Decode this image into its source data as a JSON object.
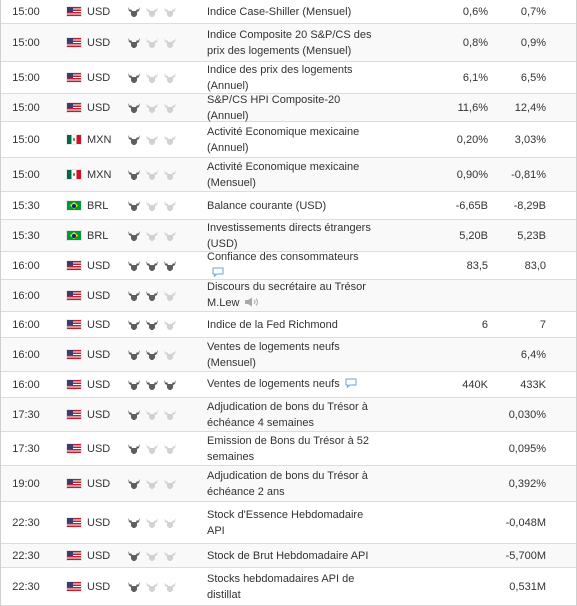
{
  "colors": {
    "bull_on": "#5e5e5e",
    "bull_off": "#d2d2d2",
    "us_red": "#b22234",
    "us_blue": "#3c3b6e",
    "mx_green": "#006847",
    "mx_red": "#ce1126",
    "br_green": "#009c3b",
    "br_yellow": "#ffdf00",
    "comment_icon": "#6ba6d9"
  },
  "rows": [
    {
      "time": "15:00",
      "flag": "us",
      "currency": "USD",
      "importance": 1,
      "event": "Indice Case-Shiller (Mensuel)",
      "icon": "",
      "actual": "0,6%",
      "forecast": "0,7%"
    },
    {
      "time": "15:00",
      "flag": "us",
      "currency": "USD",
      "importance": 1,
      "event": "Indice Composite 20 S&P/CS des prix des logements (Mensuel)",
      "icon": "",
      "actual": "0,8%",
      "forecast": "0,9%"
    },
    {
      "time": "15:00",
      "flag": "us",
      "currency": "USD",
      "importance": 1,
      "event": "Indice des prix des logements (Annuel)",
      "icon": "",
      "actual": "6,1%",
      "forecast": "6,5%"
    },
    {
      "time": "15:00",
      "flag": "us",
      "currency": "USD",
      "importance": 1,
      "event": "S&P/CS HPI Composite-20 (Annuel)",
      "icon": "",
      "actual": "11,6%",
      "forecast": "12,4%"
    },
    {
      "time": "15:00",
      "flag": "mx",
      "currency": "MXN",
      "importance": 1,
      "event": "Activité Economique mexicaine (Annuel)",
      "icon": "",
      "actual": "0,20%",
      "forecast": "3,03%"
    },
    {
      "time": "15:00",
      "flag": "mx",
      "currency": "MXN",
      "importance": 1,
      "event": "Activité Economique mexicaine (Mensuel)",
      "icon": "",
      "actual": "0,90%",
      "forecast": "-0,81%"
    },
    {
      "time": "15:30",
      "flag": "br",
      "currency": "BRL",
      "importance": 1,
      "event": "Balance courante (USD)",
      "icon": "",
      "actual": "-6,65B",
      "forecast": "-8,29B"
    },
    {
      "time": "15:30",
      "flag": "br",
      "currency": "BRL",
      "importance": 1,
      "event": "Investissements directs étrangers (USD)",
      "icon": "",
      "actual": "5,20B",
      "forecast": "5,23B"
    },
    {
      "time": "16:00",
      "flag": "us",
      "currency": "USD",
      "importance": 3,
      "event": "Confiance des consommateurs",
      "icon": "comment",
      "actual": "83,5",
      "forecast": "83,0"
    },
    {
      "time": "16:00",
      "flag": "us",
      "currency": "USD",
      "importance": 2,
      "event": "Discours du secrétaire au Trésor M.Lew",
      "icon": "speaker",
      "actual": "",
      "forecast": ""
    },
    {
      "time": "16:00",
      "flag": "us",
      "currency": "USD",
      "importance": 2,
      "event": "Indice de la Fed Richmond",
      "icon": "",
      "actual": "6",
      "forecast": "7"
    },
    {
      "time": "16:00",
      "flag": "us",
      "currency": "USD",
      "importance": 2,
      "event": "Ventes de logements neufs (Mensuel)",
      "icon": "",
      "actual": "",
      "forecast": "6,4%"
    },
    {
      "time": "16:00",
      "flag": "us",
      "currency": "USD",
      "importance": 3,
      "event": "Ventes de logements neufs",
      "icon": "comment",
      "actual": "440K",
      "forecast": "433K"
    },
    {
      "time": "17:30",
      "flag": "us",
      "currency": "USD",
      "importance": 1,
      "event": "Adjudication de bons du Trésor à échéance 4 semaines",
      "icon": "",
      "actual": "",
      "forecast": "0,030%"
    },
    {
      "time": "17:30",
      "flag": "us",
      "currency": "USD",
      "importance": 1,
      "event": "Emission de Bons du Trésor à 52 semaines",
      "icon": "",
      "actual": "",
      "forecast": "0,095%"
    },
    {
      "time": "19:00",
      "flag": "us",
      "currency": "USD",
      "importance": 1,
      "event": "Adjudication de bons du Trésor à échéance 2 ans",
      "icon": "",
      "actual": "",
      "forecast": "0,392%"
    },
    {
      "time": "22:30",
      "flag": "us",
      "currency": "USD",
      "importance": 1,
      "event": "Stock d'Essence Hebdomadaire API",
      "icon": "",
      "actual": "",
      "forecast": "-0,048M"
    },
    {
      "time": "22:30",
      "flag": "us",
      "currency": "USD",
      "importance": 1,
      "event": "Stock de Brut Hebdomadaire API",
      "icon": "",
      "actual": "",
      "forecast": "-5,700M"
    },
    {
      "time": "22:30",
      "flag": "us",
      "currency": "USD",
      "importance": 1,
      "event": "Stocks hebdomadaires API de distillat",
      "icon": "",
      "actual": "",
      "forecast": "0,531M"
    }
  ]
}
